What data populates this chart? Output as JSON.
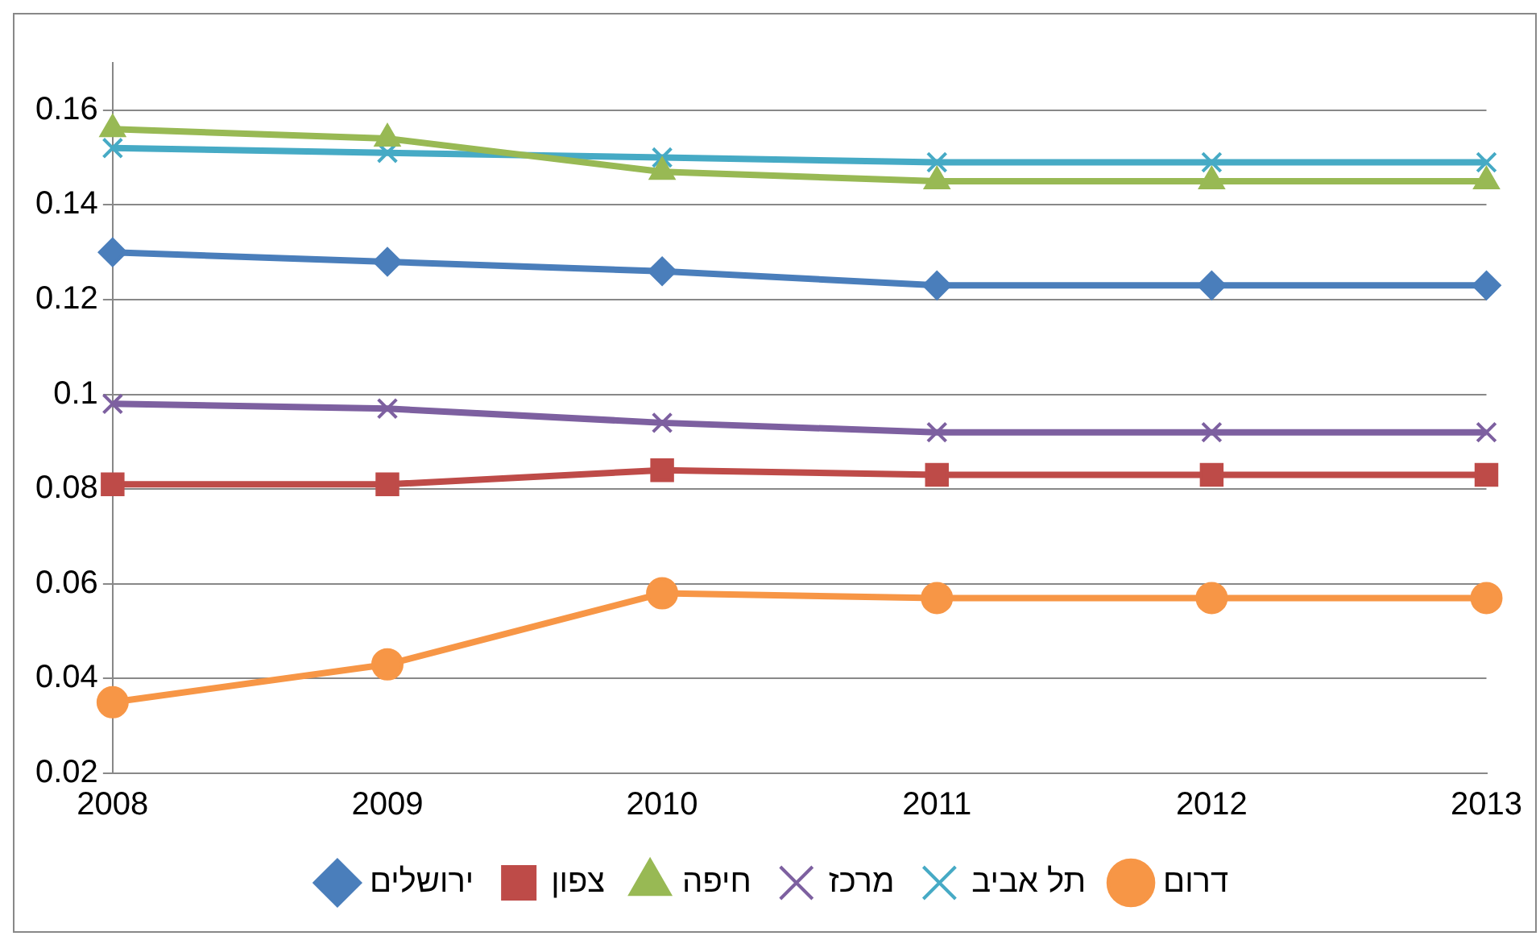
{
  "chart_data": {
    "type": "line",
    "categories": [
      "2008",
      "2009",
      "2010",
      "2011",
      "2012",
      "2013"
    ],
    "series": [
      {
        "name": "ירושלים",
        "color": "#4a7ebb",
        "marker": "diamond",
        "values": [
          0.13,
          0.128,
          0.126,
          0.123,
          0.123,
          0.123
        ]
      },
      {
        "name": "צפון",
        "color": "#be4b48",
        "marker": "square",
        "values": [
          0.081,
          0.081,
          0.084,
          0.083,
          0.083,
          0.083
        ]
      },
      {
        "name": "חיפה",
        "color": "#98b954",
        "marker": "triangle",
        "values": [
          0.156,
          0.154,
          0.147,
          0.145,
          0.145,
          0.145
        ]
      },
      {
        "name": "מרכז",
        "color": "#7d60a0",
        "marker": "cross",
        "values": [
          0.098,
          0.097,
          0.094,
          0.092,
          0.092,
          0.092
        ]
      },
      {
        "name": "תל אביב",
        "color": "#46aac5",
        "marker": "cross",
        "values": [
          0.152,
          0.151,
          0.15,
          0.149,
          0.149,
          0.149
        ]
      },
      {
        "name": "דרום",
        "color": "#f79646",
        "marker": "circle",
        "values": [
          0.035,
          0.043,
          0.058,
          0.057,
          0.057,
          0.057
        ]
      }
    ],
    "ylim": [
      0.02,
      0.17
    ],
    "yticks": [
      0.02,
      0.04,
      0.06,
      0.08,
      0.1,
      0.12,
      0.14,
      0.16
    ],
    "grid": "y",
    "legend": "bottom",
    "line_style": "solid"
  }
}
